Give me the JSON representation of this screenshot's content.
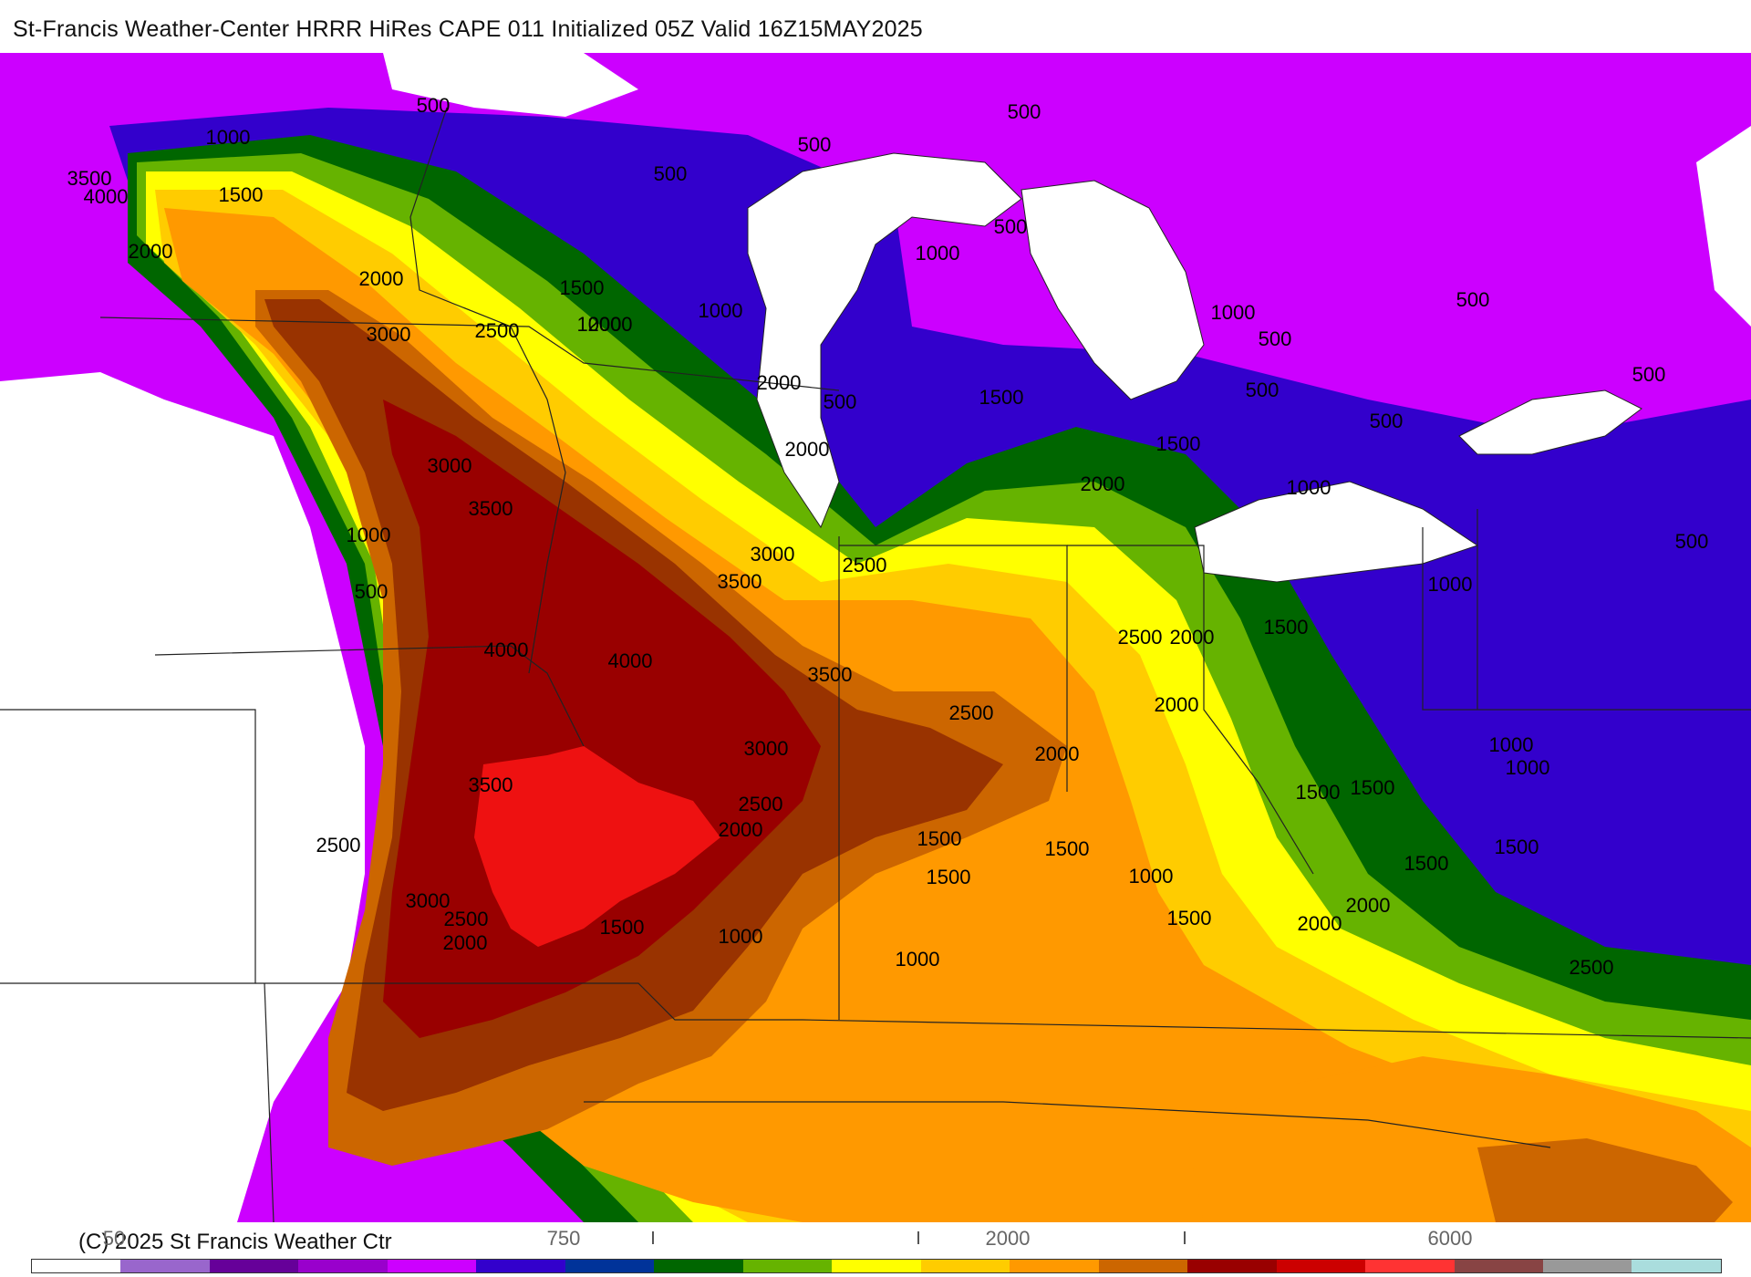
{
  "title": "St-Francis Weather-Center HRRR HiRes CAPE  011 Initialized  05Z Valid 16Z15MAY2025",
  "copyright": "(C) 2025 St Francis Weather Ctr",
  "colorbar": {
    "tick_labels": [
      "50",
      "750",
      "2000",
      "6000"
    ],
    "colors": [
      "#ffffff",
      "#9966cc",
      "#660099",
      "#9900cc",
      "#cc00ff",
      "#3300cc",
      "#003399",
      "#006600",
      "#66b300",
      "#ffff00",
      "#ffcc00",
      "#ff9900",
      "#cc6600",
      "#990000",
      "#cc0000",
      "#ff3333",
      "#884444",
      "#999999",
      "#aadddd"
    ]
  },
  "contour_labels": [
    "500",
    "1000",
    "1500",
    "2000",
    "2500",
    "3000",
    "3500",
    "4000"
  ],
  "fill_colors": {
    "white": "#ffffff",
    "violet": "#9966cc",
    "magenta": "#cc00ff",
    "blue": "#3300cc",
    "darkgreen": "#006600",
    "green": "#66b300",
    "yellow": "#ffff00",
    "gold": "#ffcc00",
    "orange": "#ff9900",
    "brown": "#cc6600",
    "rust": "#993300",
    "darkred": "#990000",
    "red": "#ee1111"
  }
}
